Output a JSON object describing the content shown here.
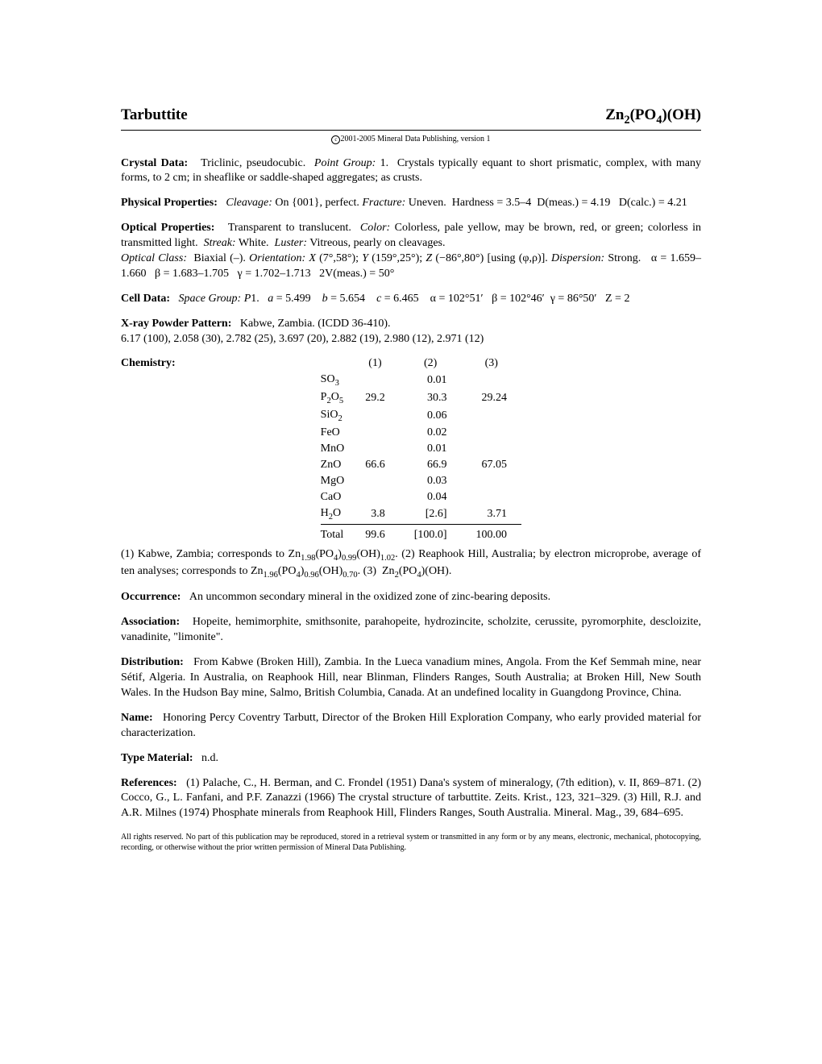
{
  "header": {
    "mineral_name": "Tarbuttite",
    "formula_html": "Zn<sub>2</sub>(PO<sub>4</sub>)(OH)"
  },
  "copyright": "2001-2005 Mineral Data Publishing, version 1",
  "sections": {
    "crystal_data": {
      "label": "Crystal Data:",
      "body_html": "Triclinic, pseudocubic.&nbsp;&nbsp;<span class='italic'>Point Group:</span> 1.&nbsp;&nbsp;Crystals typically equant to short prismatic, complex, with many forms, to 2 cm; in sheaflike or saddle-shaped aggregates; as crusts."
    },
    "physical": {
      "label": "Physical Properties:",
      "body_html": "&nbsp;&nbsp;&nbsp;<span class='italic'>Cleavage:</span> On {001}, perfect. <span class='italic'>Fracture:</span> Uneven.&nbsp;&nbsp;Hardness = 3.5–4&nbsp;&nbsp;D(meas.) = 4.19&nbsp;&nbsp;&nbsp;D(calc.) = 4.21"
    },
    "optical": {
      "label": "Optical Properties:",
      "body_html": "Transparent to translucent.&nbsp;&nbsp;<span class='italic'>Color:</span> Colorless, pale yellow, may be brown, red, or green; colorless in transmitted light.&nbsp;&nbsp;<span class='italic'>Streak:</span> White.&nbsp;&nbsp;<span class='italic'>Luster:</span> Vitreous, pearly on cleavages.<br><span class='italic'>Optical Class:</span>&nbsp;&nbsp;Biaxial (–). <span class='italic'>Orientation:</span> <span class='italic'>X</span> (7°,58°); <span class='italic'>Y</span> (159°,25°); <span class='italic'>Z</span> (−86°,80°) [using (φ,ρ)]. <span class='italic'>Dispersion:</span> Strong.&nbsp;&nbsp;&nbsp;α = 1.659–1.660&nbsp;&nbsp;&nbsp;β = 1.683–1.705&nbsp;&nbsp;&nbsp;γ = 1.702–1.713&nbsp;&nbsp;&nbsp;2V(meas.) = 50°"
    },
    "cell": {
      "label": "Cell Data:",
      "body_html": "<span class='italic'>Space Group:</span> <span class='italic'>P</span>1.&nbsp;&nbsp;&nbsp;<span class='italic'>a</span> = 5.499&nbsp;&nbsp;&nbsp;&nbsp;<span class='italic'>b</span> = 5.654&nbsp;&nbsp;&nbsp;&nbsp;<span class='italic'>c</span> = 6.465&nbsp;&nbsp;&nbsp;&nbsp;α = 102°51′&nbsp;&nbsp;&nbsp;β = 102°46′&nbsp;&nbsp;γ = 86°50′&nbsp;&nbsp;&nbsp;Z = 2"
    },
    "xray": {
      "label": "X-ray Powder Pattern:",
      "body_html": "Kabwe, Zambia. (ICDD 36-410).<br>6.17 (100), 2.058 (30), 2.782 (25), 3.697 (20), 2.882 (19), 2.980 (12), 2.971 (12)"
    },
    "chemistry": {
      "label": "Chemistry:",
      "columns": [
        "(1)",
        "(2)",
        "(3)"
      ],
      "rows": [
        {
          "compound_html": "SO<sub>3</sub>",
          "v1": "",
          "v2": "0.01",
          "v3": ""
        },
        {
          "compound_html": "P<sub>2</sub>O<sub>5</sub>",
          "v1": "29.2",
          "v2": "30.3",
          "v3": "29.24"
        },
        {
          "compound_html": "SiO<sub>2</sub>",
          "v1": "",
          "v2": "0.06",
          "v3": ""
        },
        {
          "compound_html": "FeO",
          "v1": "",
          "v2": "0.02",
          "v3": ""
        },
        {
          "compound_html": "MnO",
          "v1": "",
          "v2": "0.01",
          "v3": ""
        },
        {
          "compound_html": "ZnO",
          "v1": "66.6",
          "v2": "66.9",
          "v3": "67.05"
        },
        {
          "compound_html": "MgO",
          "v1": "",
          "v2": "0.03",
          "v3": ""
        },
        {
          "compound_html": "CaO",
          "v1": "",
          "v2": "0.04",
          "v3": ""
        },
        {
          "compound_html": "H<sub>2</sub>O",
          "v1": "3.8",
          "v2": "[2.6]",
          "v3": "3.71"
        }
      ],
      "total": {
        "label": "Total",
        "v1": "99.6",
        "v2": "[100.0]",
        "v3": "100.00"
      },
      "notes_html": "(1) Kabwe, Zambia; corresponds to Zn<sub>1.98</sub>(PO<sub>4</sub>)<sub>0.99</sub>(OH)<sub>1.02</sub>. (2) Reaphook Hill, Australia; by electron microprobe, average of ten analyses; corresponds to Zn<sub>1.96</sub>(PO<sub>4</sub>)<sub>0.96</sub>(OH)<sub>0.70</sub>. (3)&nbsp;&nbsp;Zn<sub>2</sub>(PO<sub>4</sub>)(OH)."
    },
    "occurrence": {
      "label": "Occurrence:",
      "body_html": "An uncommon secondary mineral in the oxidized zone of zinc-bearing deposits."
    },
    "association": {
      "label": "Association:",
      "body_html": "Hopeite, hemimorphite, smithsonite, parahopeite, hydrozincite, scholzite, cerussite, pyromorphite, descloizite, vanadinite, \"limonite\"."
    },
    "distribution": {
      "label": "Distribution:",
      "body_html": "From Kabwe (Broken Hill), Zambia. In the Lueca vanadium mines, Angola. From the Kef Semmah mine, near Sétif, Algeria. In Australia, on Reaphook Hill, near Blinman, Flinders Ranges, South Australia; at Broken Hill, New South Wales. In the Hudson Bay mine, Salmo, British Columbia, Canada. At an undefined locality in Guangdong Province, China."
    },
    "name": {
      "label": "Name:",
      "body_html": "Honoring Percy Coventry Tarbutt, Director of the Broken Hill Exploration Company, who early provided material for characterization."
    },
    "type_material": {
      "label": "Type Material:",
      "body_html": "n.d."
    },
    "references": {
      "label": "References:",
      "body_html": "(1) Palache, C., H. Berman, and C. Frondel (1951) Dana's system of mineralogy, (7th edition), v. II, 869–871. (2) Cocco, G., L. Fanfani, and P.F. Zanazzi (1966) The crystal structure of tarbuttite. Zeits. Krist., 123, 321–329. (3) Hill, R.J. and A.R. Milnes (1974) Phosphate minerals from Reaphook Hill, Flinders Ranges, South Australia. Mineral. Mag., 39, 684–695."
    }
  },
  "footer": "All rights reserved. No part of this publication may be reproduced, stored in a retrieval system or transmitted in any form or by any means, electronic, mechanical, photocopying, recording, or otherwise without the prior written permission of Mineral Data Publishing."
}
